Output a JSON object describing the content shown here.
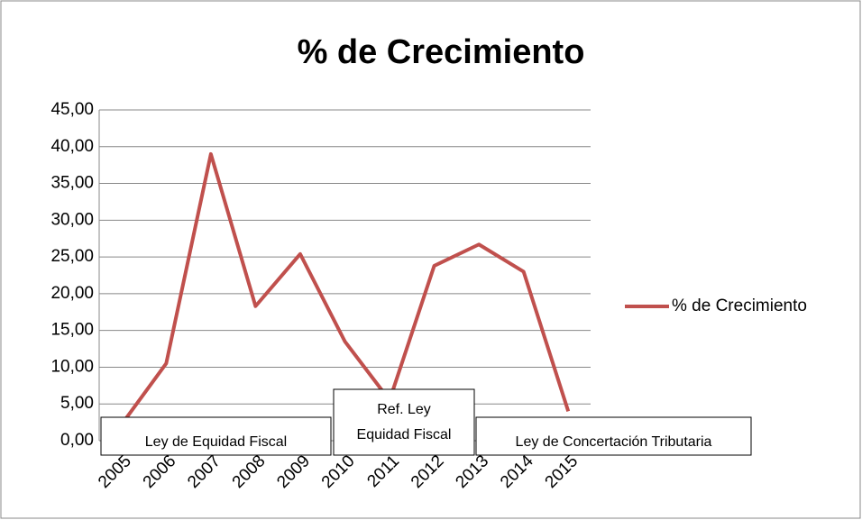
{
  "chart_data": {
    "type": "line",
    "title": "% de Crecimiento",
    "categories": [
      "2005",
      "2006",
      "2007",
      "2008",
      "2009",
      "2010",
      "2011",
      "2012",
      "2013",
      "2014",
      "2015"
    ],
    "series": [
      {
        "name": "% de Crecimiento",
        "color": "#c0504d",
        "values": [
          2.2,
          10.5,
          39.0,
          18.3,
          25.4,
          13.5,
          5.5,
          23.8,
          26.7,
          23.0,
          4.0
        ]
      }
    ],
    "ylim": [
      0,
      45
    ],
    "yticks": [
      {
        "value": 0,
        "label": "0,00"
      },
      {
        "value": 5,
        "label": "5,00"
      },
      {
        "value": 10,
        "label": "10,00"
      },
      {
        "value": 15,
        "label": "15,00"
      },
      {
        "value": 20,
        "label": "20,00"
      },
      {
        "value": 25,
        "label": "25,00"
      },
      {
        "value": 30,
        "label": "30,00"
      },
      {
        "value": 35,
        "label": "35,00"
      },
      {
        "value": 40,
        "label": "40,00"
      },
      {
        "value": 45,
        "label": "45,00"
      }
    ],
    "grid": true,
    "legend": "right",
    "annotations": [
      [
        "Ley de Equidad Fiscal"
      ],
      [
        "Ref. Ley",
        "Equidad Fiscal"
      ],
      [
        "Ley de Concertación Tributaria"
      ]
    ]
  }
}
